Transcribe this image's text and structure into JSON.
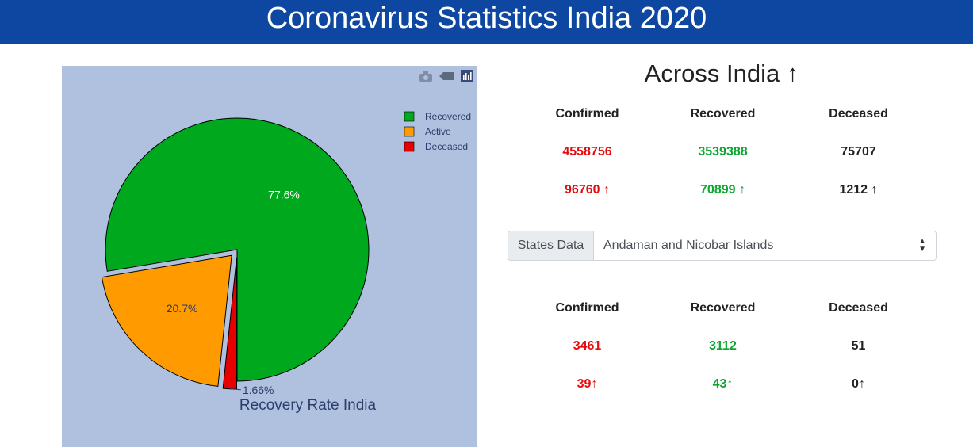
{
  "header": {
    "title": "Coronavirus Statistics India 2020"
  },
  "chart": {
    "modebar": [
      {
        "icon": "camera-icon"
      },
      {
        "icon": "tag-icon"
      },
      {
        "icon": "bar-chart-icon"
      }
    ]
  },
  "chart_data": {
    "type": "pie",
    "title": "Recovery Rate India",
    "labels": [
      "Recovered",
      "Active",
      "Deceased"
    ],
    "values": [
      77.6,
      20.7,
      1.66
    ],
    "percent_labels": [
      "77.6%",
      "20.7%",
      "1.66%"
    ],
    "colors": [
      "#00a81e",
      "#ff9a00",
      "#e60000"
    ],
    "pull": [
      "Active",
      "Deceased"
    ],
    "legend": "top-right",
    "background": "#b0c0df"
  },
  "india": {
    "heading": "Across India ↑",
    "headers": [
      "Confirmed",
      "Recovered",
      "Deceased"
    ],
    "totals": [
      "4558756",
      "3539388",
      "75707"
    ],
    "deltas": [
      "96760 ↑",
      "70899 ↑",
      "1212 ↑"
    ]
  },
  "states": {
    "prefix": "States Data",
    "selected": "Andaman and Nicobar Islands",
    "headers": [
      "Confirmed",
      "Recovered",
      "Deceased"
    ],
    "totals": [
      "3461",
      "3112",
      "51"
    ],
    "deltas": [
      "39↑",
      "43↑",
      "0↑"
    ]
  },
  "colors": {
    "header_bg": "#0d47a1",
    "red": "#e30d0d",
    "green": "#0aa830"
  }
}
